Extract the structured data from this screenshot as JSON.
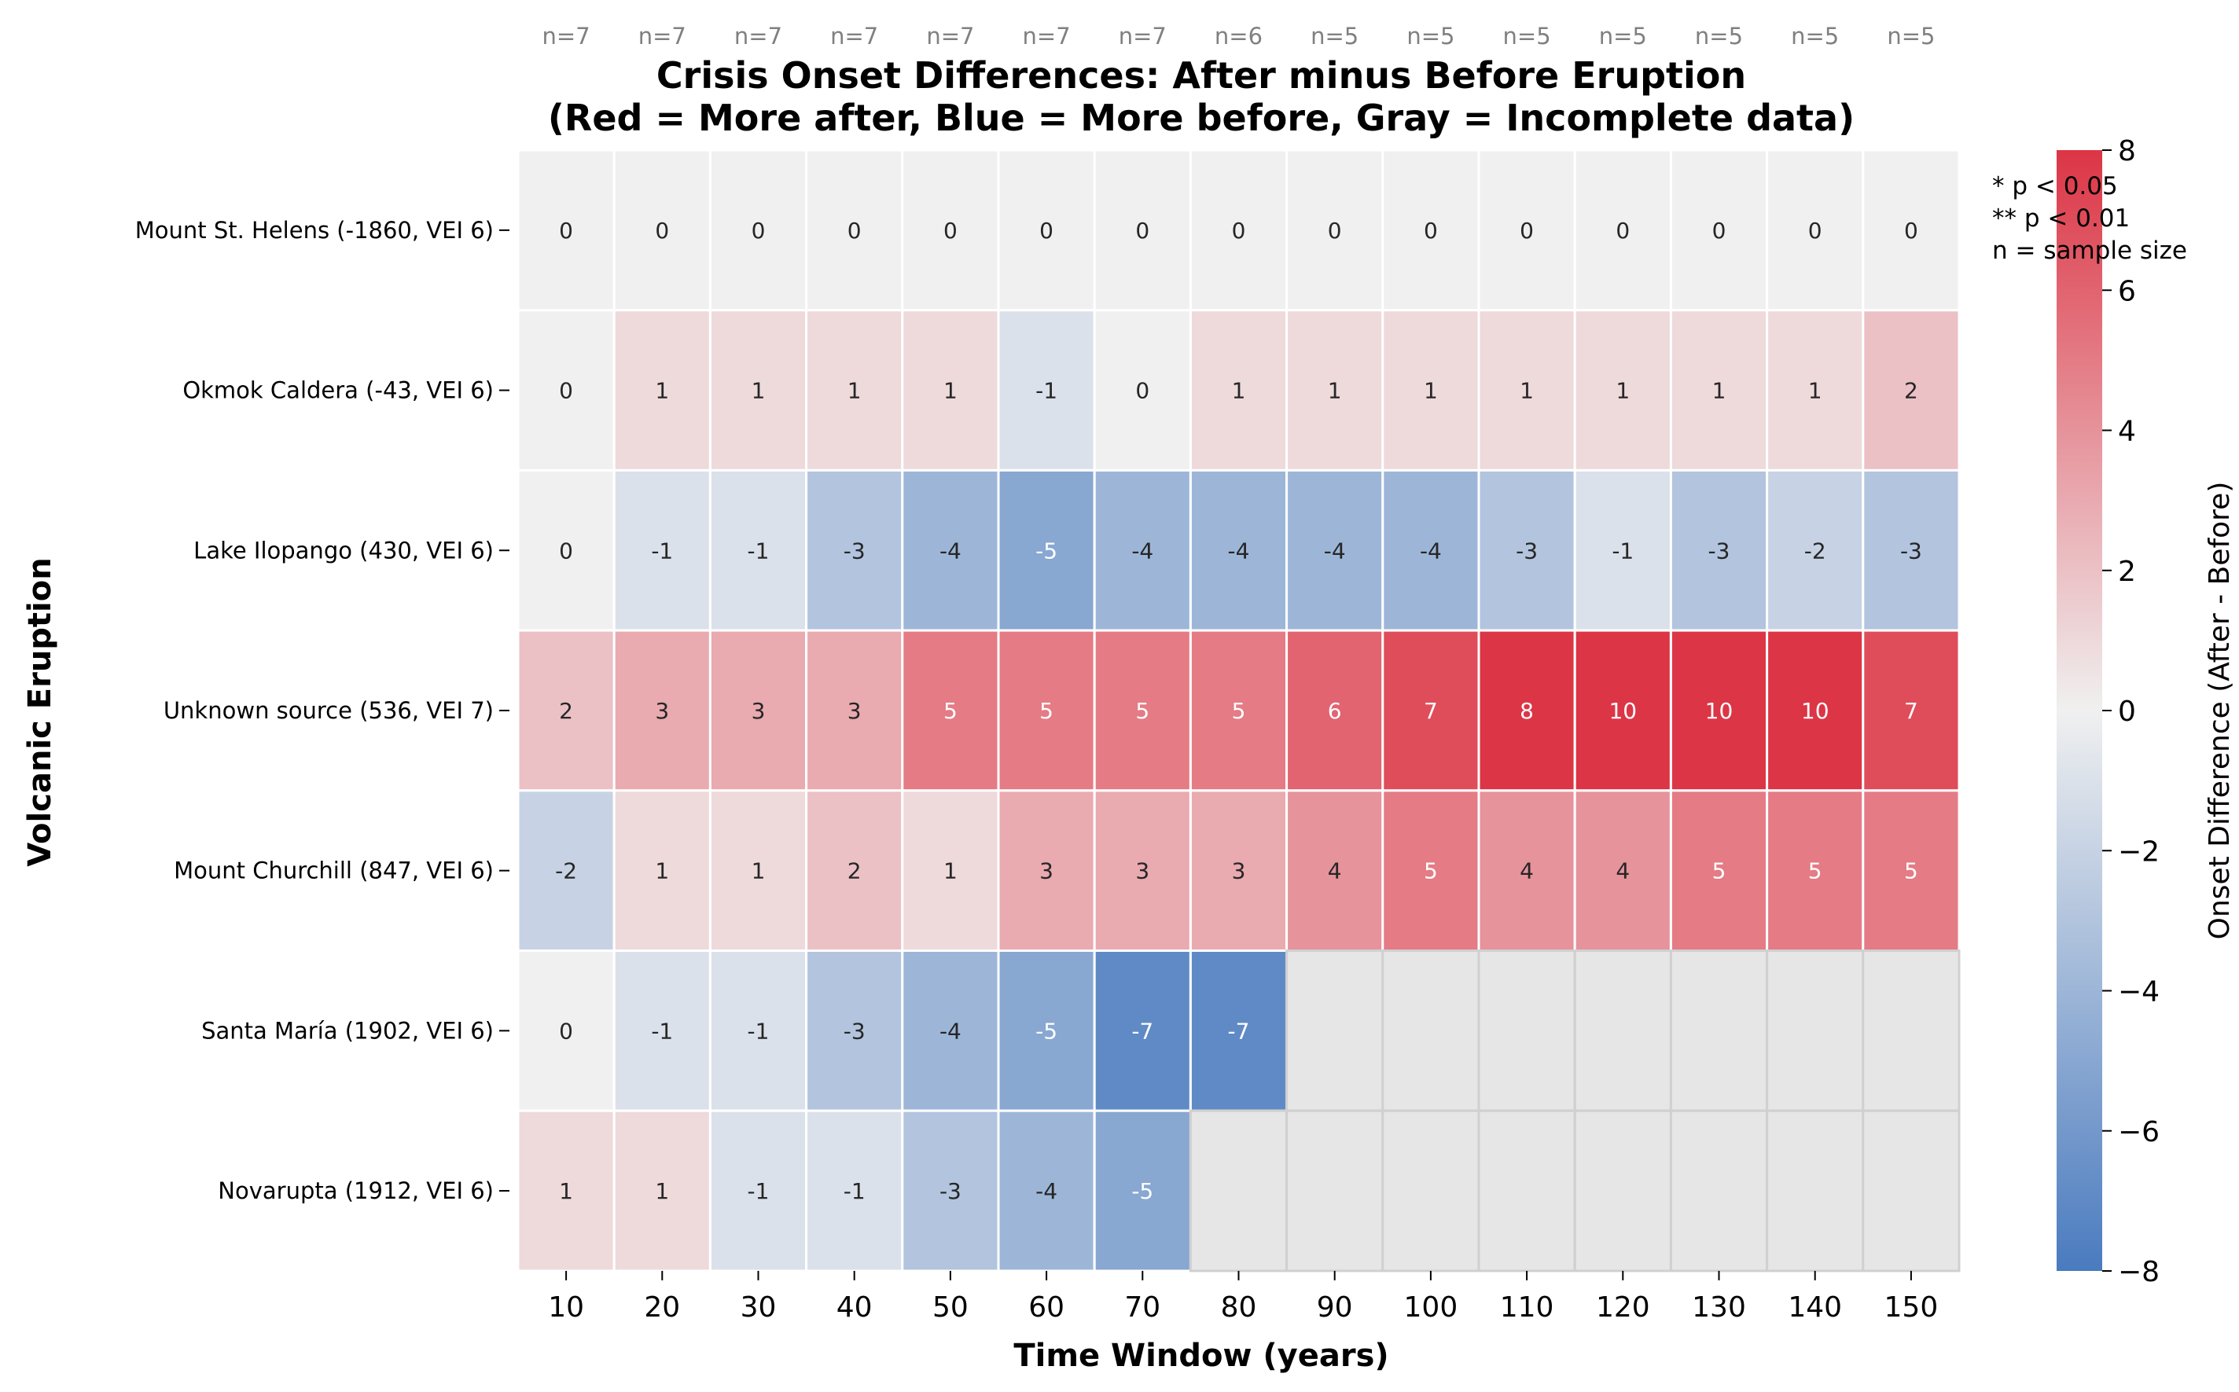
{
  "chart_data": {
    "type": "heatmap",
    "title_lines": [
      "Crisis Onset Differences: After minus Before Eruption",
      "(Red = More after, Blue = More before, Gray = Incomplete data)"
    ],
    "xlabel": "Time Window (years)",
    "ylabel": "Volcanic Eruption",
    "colorbar_label": "Onset Difference (After - Before)",
    "colorbar_range": [
      -8,
      8
    ],
    "colorbar_ticks": [
      8,
      6,
      4,
      2,
      0,
      -2,
      -4,
      -6,
      -8
    ],
    "colorbar_tick_labels": [
      "8",
      "6",
      "4",
      "2",
      "0",
      "−2",
      "−4",
      "−6",
      "−8"
    ],
    "colors": {
      "negative_end": "#4a7bbf",
      "center": "#f0f0f0",
      "positive_end": "#dc3545",
      "incomplete": "#e6e6e6"
    },
    "x_categories": [
      "10",
      "20",
      "30",
      "40",
      "50",
      "60",
      "70",
      "80",
      "90",
      "100",
      "110",
      "120",
      "130",
      "140",
      "150"
    ],
    "n_labels": [
      "n=7",
      "n=7",
      "n=7",
      "n=7",
      "n=7",
      "n=7",
      "n=7",
      "n=6",
      "n=5",
      "n=5",
      "n=5",
      "n=5",
      "n=5",
      "n=5",
      "n=5"
    ],
    "legend_notes": [
      "* p < 0.05",
      "** p < 0.01",
      "n = sample size"
    ],
    "rows": [
      {
        "label": "Mount St. Helens  (-1860, VEI 6)",
        "values": [
          0,
          0,
          0,
          0,
          0,
          0,
          0,
          0,
          0,
          0,
          0,
          0,
          0,
          0,
          0
        ]
      },
      {
        "label": "Okmok Caldera  (-43, VEI 6)",
        "values": [
          0,
          1,
          1,
          1,
          1,
          -1,
          0,
          1,
          1,
          1,
          1,
          1,
          1,
          1,
          2
        ]
      },
      {
        "label": "Lake Ilopango  (430, VEI 6)",
        "values": [
          0,
          -1,
          -1,
          -3,
          -4,
          -5,
          -4,
          -4,
          -4,
          -4,
          -3,
          -1,
          -3,
          -2,
          -3
        ]
      },
      {
        "label": "Unknown source  (536, VEI 7)",
        "values": [
          2,
          3,
          3,
          3,
          5,
          5,
          5,
          5,
          6,
          7,
          8,
          10,
          10,
          10,
          7
        ]
      },
      {
        "label": "Mount Churchill  (847, VEI 6)",
        "values": [
          -2,
          1,
          1,
          2,
          1,
          3,
          3,
          3,
          4,
          5,
          4,
          4,
          5,
          5,
          5
        ]
      },
      {
        "label": "Santa María  (1902, VEI 6)",
        "values": [
          0,
          -1,
          -1,
          -3,
          -4,
          -5,
          -7,
          -7,
          null,
          null,
          null,
          null,
          null,
          null,
          null
        ]
      },
      {
        "label": "Novarupta  (1912, VEI 6)",
        "values": [
          1,
          1,
          -1,
          -1,
          -3,
          -4,
          -5,
          null,
          null,
          null,
          null,
          null,
          null,
          null,
          null
        ]
      }
    ]
  }
}
